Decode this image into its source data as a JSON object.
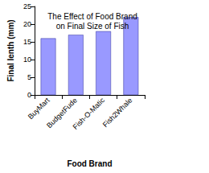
{
  "chart_data": {
    "type": "bar",
    "title": "The Effect of Food Brand\non Final Size of Fish",
    "x_label": "Food Brand",
    "y_label": "Final lenth (mm)",
    "categories": [
      "BuyMart",
      "BudgetFude",
      "Fish-O-Matic",
      "Fish2Whale"
    ],
    "values": [
      16,
      17,
      18,
      22
    ],
    "color": "#9999ff",
    "ylim": [
      0,
      25
    ],
    "yticks": [
      0,
      5,
      10,
      15,
      20,
      25
    ],
    "grid": false
  }
}
